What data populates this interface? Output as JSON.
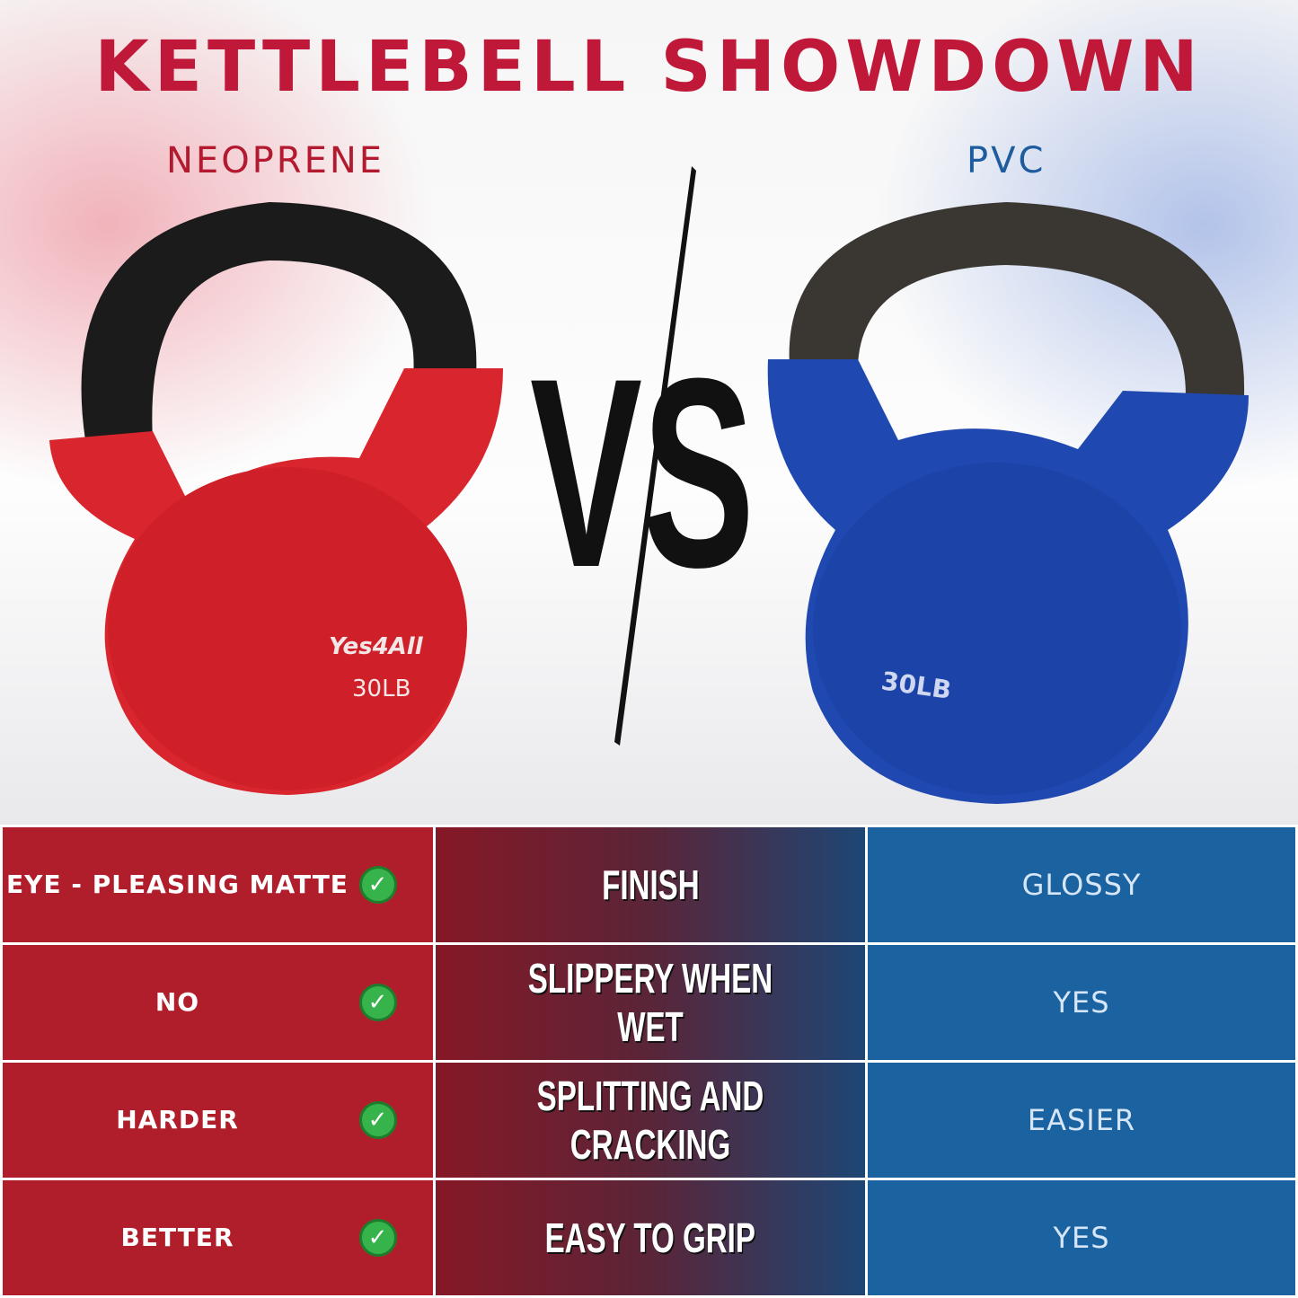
{
  "title": "KETTLEBELL SHOWDOWN",
  "left_label": "NEOPRENE",
  "right_label": "PVC",
  "vs_text": "VS",
  "left_kettlebell": {
    "brand": "Yes4All",
    "weight": "30LB"
  },
  "right_kettlebell": {
    "weight": "30LB"
  },
  "colors": {
    "neoprene": "#b01e2b",
    "pvc": "#1a62a0",
    "title": "#c01838",
    "check": "#36b34a"
  },
  "rows": [
    {
      "neoprene": "EYE - PLEASING MATTE",
      "feature": "FINISH",
      "pvc": "GLOSSY",
      "neoprene_icon": "check-circle-icon"
    },
    {
      "neoprene": "NO",
      "feature": "SLIPPERY WHEN WET",
      "pvc": "YES",
      "neoprene_icon": "check-circle-icon"
    },
    {
      "neoprene": "HARDER",
      "feature": "SPLITTING AND CRACKING",
      "pvc": "EASIER",
      "neoprene_icon": "check-circle-icon"
    },
    {
      "neoprene": "BETTER",
      "feature": "EASY TO GRIP",
      "pvc": "YES",
      "neoprene_icon": "check-circle-icon"
    }
  ]
}
